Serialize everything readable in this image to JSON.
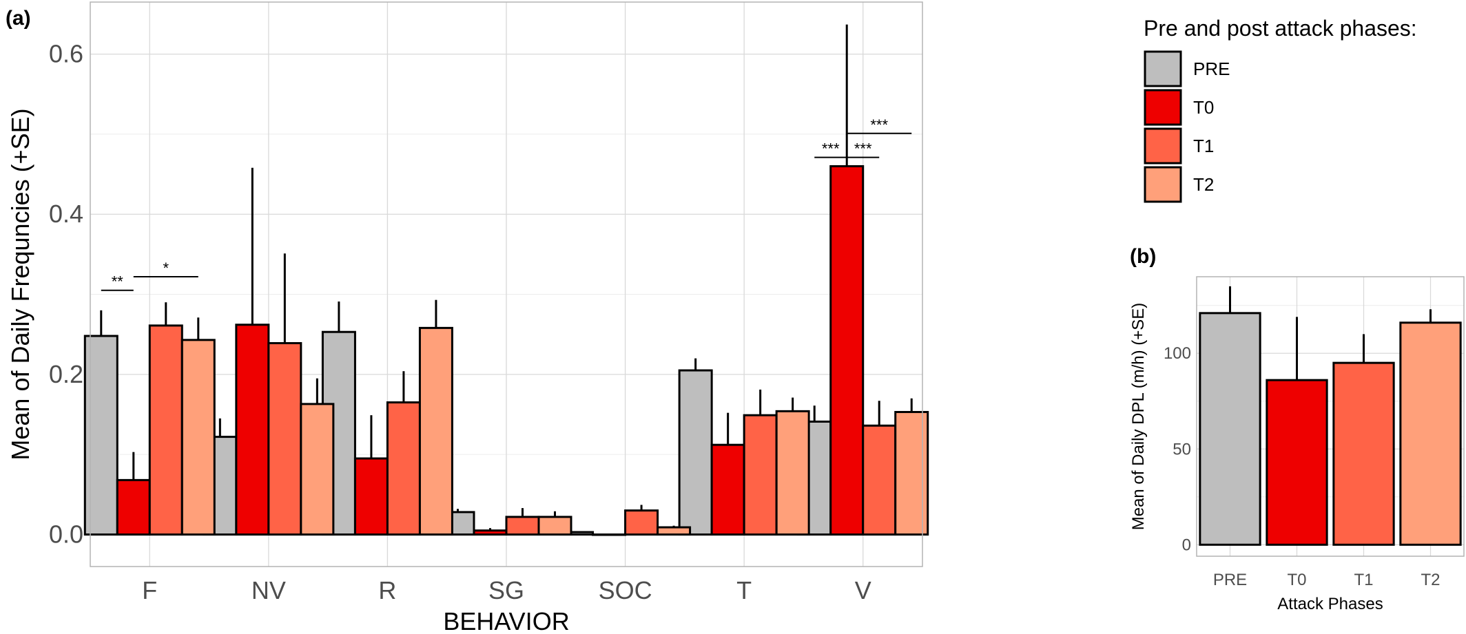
{
  "colors": {
    "PRE": "#bebebe",
    "T0": "#ee0000",
    "T1": "#ff6347",
    "T2": "#ffa07a"
  },
  "chart_data": [
    {
      "panel_label": "(a)",
      "type": "bar",
      "xlabel": "BEHAVIOR",
      "ylabel": "Mean of Daily Frequncies (+SE)",
      "ylim": [
        -0.04,
        0.665
      ],
      "yticks": [
        "0.0",
        "0.2",
        "0.4",
        "0.6"
      ],
      "categories": [
        "F",
        "NV",
        "R",
        "SG",
        "SOC",
        "T",
        "V"
      ],
      "grid": true,
      "legend": {
        "title": "Pre and post attack phases:",
        "placement": "right-top",
        "entries": [
          "PRE",
          "T0",
          "T1",
          "T2"
        ]
      },
      "series": [
        {
          "name": "PRE",
          "values": [
            0.248,
            0.122,
            0.253,
            0.028,
            0.003,
            0.205,
            0.141
          ],
          "se_upper": [
            0.28,
            0.145,
            0.291,
            0.032,
            0.004,
            0.22,
            0.161
          ]
        },
        {
          "name": "T0",
          "values": [
            0.068,
            0.262,
            0.095,
            0.005,
            0.0,
            0.112,
            0.46
          ],
          "se_upper": [
            0.103,
            0.458,
            0.149,
            0.008,
            0.0,
            0.152,
            0.637
          ]
        },
        {
          "name": "T1",
          "values": [
            0.261,
            0.239,
            0.165,
            0.022,
            0.03,
            0.149,
            0.136
          ],
          "se_upper": [
            0.29,
            0.351,
            0.204,
            0.033,
            0.037,
            0.181,
            0.167
          ]
        },
        {
          "name": "T2",
          "values": [
            0.243,
            0.163,
            0.258,
            0.022,
            0.009,
            0.154,
            0.153
          ],
          "se_upper": [
            0.271,
            0.195,
            0.293,
            0.029,
            0.011,
            0.171,
            0.17
          ]
        }
      ],
      "annotations": [
        {
          "text": "**",
          "category": "F",
          "from": "PRE",
          "to": "T0",
          "y": 0.305
        },
        {
          "text": "*",
          "category": "F",
          "from": "T0",
          "to": "T2",
          "y": 0.322
        },
        {
          "text": "***",
          "category": "V",
          "from": "PRE",
          "to": "T0",
          "y": 0.471
        },
        {
          "text": "***",
          "category": "V",
          "from": "T0",
          "to": "T1",
          "y": 0.471
        },
        {
          "text": "***",
          "category": "V",
          "from": "T0",
          "to": "T2",
          "y": 0.501
        }
      ]
    },
    {
      "panel_label": "(b)",
      "type": "bar",
      "xlabel": "Attack Phases",
      "ylabel": "Mean of Daily DPL (m/h) (+SE)",
      "ylim": [
        -6,
        140
      ],
      "yticks": [
        "0",
        "50",
        "100"
      ],
      "categories": [
        "PRE",
        "T0",
        "T1",
        "T2"
      ],
      "grid": true,
      "values": [
        121,
        86,
        95,
        116
      ],
      "se_upper": [
        135,
        119,
        110,
        123
      ]
    }
  ]
}
